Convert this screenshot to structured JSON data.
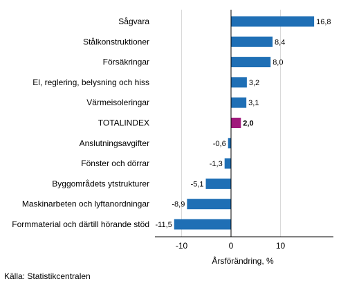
{
  "chart_data": {
    "type": "bar",
    "orientation": "horizontal",
    "categories": [
      "Sågvara",
      "Stålkonstruktioner",
      "Försäkringar",
      "El, reglering, belysning och hiss",
      "Värmeisoleringar",
      "TOTALINDEX",
      "Anslutningsavgifter",
      "Fönster och dörrar",
      "Byggområdets ytstrukturer",
      "Maskinarbeten och lyftanordningar",
      "Formmaterial och därtill hörande stöd"
    ],
    "values": [
      16.8,
      8.4,
      8.0,
      3.2,
      3.1,
      2.0,
      -0.6,
      -1.3,
      -5.1,
      -8.9,
      -11.5
    ],
    "value_labels": [
      "16,8",
      "8,4",
      "8,0",
      "3,2",
      "3,1",
      "2,0",
      "-0,6",
      "-1,3",
      "-5,1",
      "-8,9",
      "-11,5"
    ],
    "highlight_category": "TOTALINDEX",
    "xlabel": "Årsförändring, %",
    "xlim": [
      -15.5,
      20
    ],
    "xticks": [
      -10,
      0,
      10
    ],
    "xtick_labels": [
      "-10",
      "0",
      "10"
    ],
    "grid": true,
    "colors": {
      "bar": "#1f6fb5",
      "highlight": "#a0197c",
      "grid": "#d9d9d9",
      "axis": "#000000"
    }
  },
  "source": "Källa: Statistikcentralen"
}
